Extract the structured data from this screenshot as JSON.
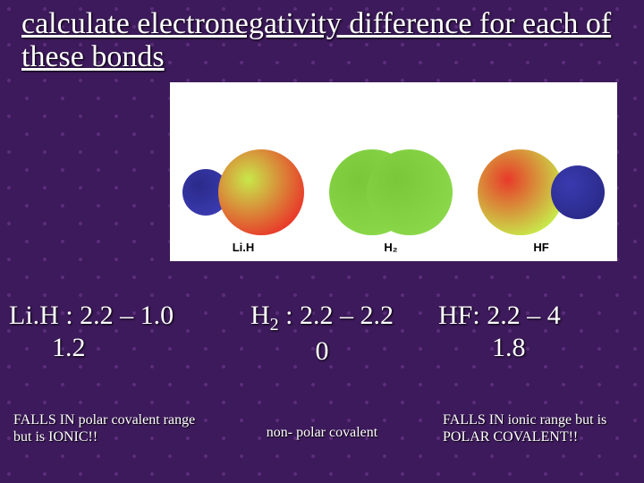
{
  "title": "calculate electronegativity difference for each of these bonds",
  "figure": {
    "background_color": "#ffffff",
    "molecules": [
      {
        "label": "Li.H",
        "atoms": [
          {
            "r": 26,
            "fill_left": "#2a2a8a",
            "fill_right": "#3a3ab0"
          },
          {
            "r": 48,
            "fill_left": "#c8e84a",
            "fill_right": "#e83a2a"
          }
        ],
        "overlap": -12
      },
      {
        "label": "H₂",
        "atoms": [
          {
            "r": 48,
            "fill_left": "#7ac83a",
            "fill_right": "#8ad84a"
          },
          {
            "r": 48,
            "fill_left": "#7ac83a",
            "fill_right": "#8ad84a"
          }
        ],
        "overlap": -54
      },
      {
        "label": "HF",
        "atoms": [
          {
            "r": 48,
            "fill_left": "#e83a2a",
            "fill_right": "#c8e84a"
          },
          {
            "r": 30,
            "fill_left": "#3a3ab0",
            "fill_right": "#2a2a8a"
          }
        ],
        "overlap": -14
      }
    ]
  },
  "calcs": [
    {
      "prefix": "Li.H :",
      "expr": "2.2 – 1.0",
      "result": "1.2"
    },
    {
      "prefix": "H",
      "sub": "2",
      "suffix": " :",
      "expr": "2.2 – 2.2",
      "result": "0"
    },
    {
      "prefix": "HF:",
      "expr": "2.2 – 4",
      "result": "1.8"
    }
  ],
  "notes": [
    "FALLS IN polar covalent range but is IONIC!!",
    "non- polar covalent",
    "FALLS IN ionic range but is POLAR COVALENT!!"
  ],
  "colors": {
    "bg": "#3d1a5b",
    "text": "#ffffff"
  }
}
